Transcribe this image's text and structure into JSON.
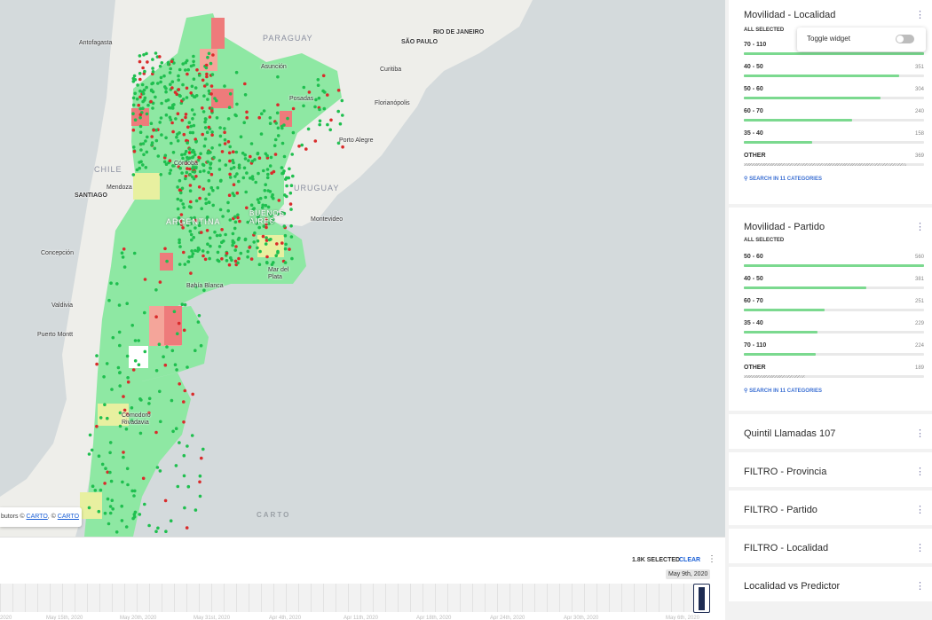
{
  "map": {
    "labels": {
      "paraguay": "PARAGUAY",
      "chile": "CHILE",
      "uruguay": "URUGUAY",
      "argentina": "ARGENTINA",
      "buenos_aires": "BUENOS AIRES",
      "antofagasta": "Antofagasta",
      "sao_paulo": "SÃO PAULO",
      "rio": "RIO DE JANEIRO",
      "asuncion": "Asunción",
      "curitiba": "Curitiba",
      "posadas": "Posadas",
      "florianopolis": "Florianópolis",
      "porto_alegre": "Porto Alegre",
      "cordoba": "Córdoba",
      "mendoza": "Mendoza",
      "santiago": "SANTIAGO",
      "montevideo": "Montevideo",
      "concepcion": "Concepción",
      "mar_del_plata": "Mar del Plata",
      "bahia_blanca": "Bahía Blanca",
      "valdivia": "Valdivia",
      "puerto_montt": "Puerto Montt",
      "comodoro": "Comodoro Rivadavia"
    },
    "attribution_prefix": "butors © ",
    "attribution_link1": "CARTO",
    "attribution_sep": ", © ",
    "attribution_link2": "CARTO",
    "logo": "CARTO",
    "colors": {
      "ocean": "#d4dadc",
      "land": "#eeeeea",
      "green": "#8ee8a3",
      "green_light": "#a8efb6",
      "yellow": "#e8f0a0",
      "salmon": "#f4a59a",
      "red": "#ee7b7b",
      "dot_green": "#1fbf4f",
      "dot_red": "#d92b2b"
    }
  },
  "timeline": {
    "selected": "1.8K SELECTED",
    "clear": "CLEAR",
    "date": "May 9th, 2020",
    "ticks": [
      "2020",
      "May 15th, 2020",
      "May 20th, 2020",
      "May 31st, 2020",
      "Apr 4th, 2020",
      "Apr 11th, 2020",
      "Apr 18th, 2020",
      "Apr 24th, 2020",
      "Apr 30th, 2020",
      "May 6th, 2020"
    ]
  },
  "toggle": {
    "label": "Toggle widget"
  },
  "widgets": {
    "localidad": {
      "title": "Movilidad - Localidad",
      "all_selected": "ALL SELECTED",
      "search": "SEARCH IN 11 CATEGORIES",
      "rows": [
        {
          "label": "70 - 110",
          "value": "",
          "fill": 1.0
        },
        {
          "label": "40 - 50",
          "value": "351",
          "fill": 0.86
        },
        {
          "label": "50 - 60",
          "value": "304",
          "fill": 0.76
        },
        {
          "label": "60 - 70",
          "value": "240",
          "fill": 0.6
        },
        {
          "label": "35 - 40",
          "value": "158",
          "fill": 0.38
        },
        {
          "label": "OTHER",
          "value": "369",
          "fill": 0.9
        }
      ]
    },
    "partido": {
      "title": "Movilidad - Partido",
      "all_selected": "ALL SELECTED",
      "search": "SEARCH IN 11 CATEGORIES",
      "rows": [
        {
          "label": "50 - 60",
          "value": "560",
          "fill": 1.0
        },
        {
          "label": "40 - 50",
          "value": "381",
          "fill": 0.68
        },
        {
          "label": "60 - 70",
          "value": "251",
          "fill": 0.45
        },
        {
          "label": "35 - 40",
          "value": "229",
          "fill": 0.41
        },
        {
          "label": "70 - 110",
          "value": "224",
          "fill": 0.4
        },
        {
          "label": "OTHER",
          "value": "189",
          "fill": 0.34
        }
      ]
    },
    "collapsed": [
      "Quintil Llamadas 107",
      "FILTRO - Provincia",
      "FILTRO - Partido",
      "FILTRO - Localidad",
      "Localidad vs Predictor"
    ]
  }
}
